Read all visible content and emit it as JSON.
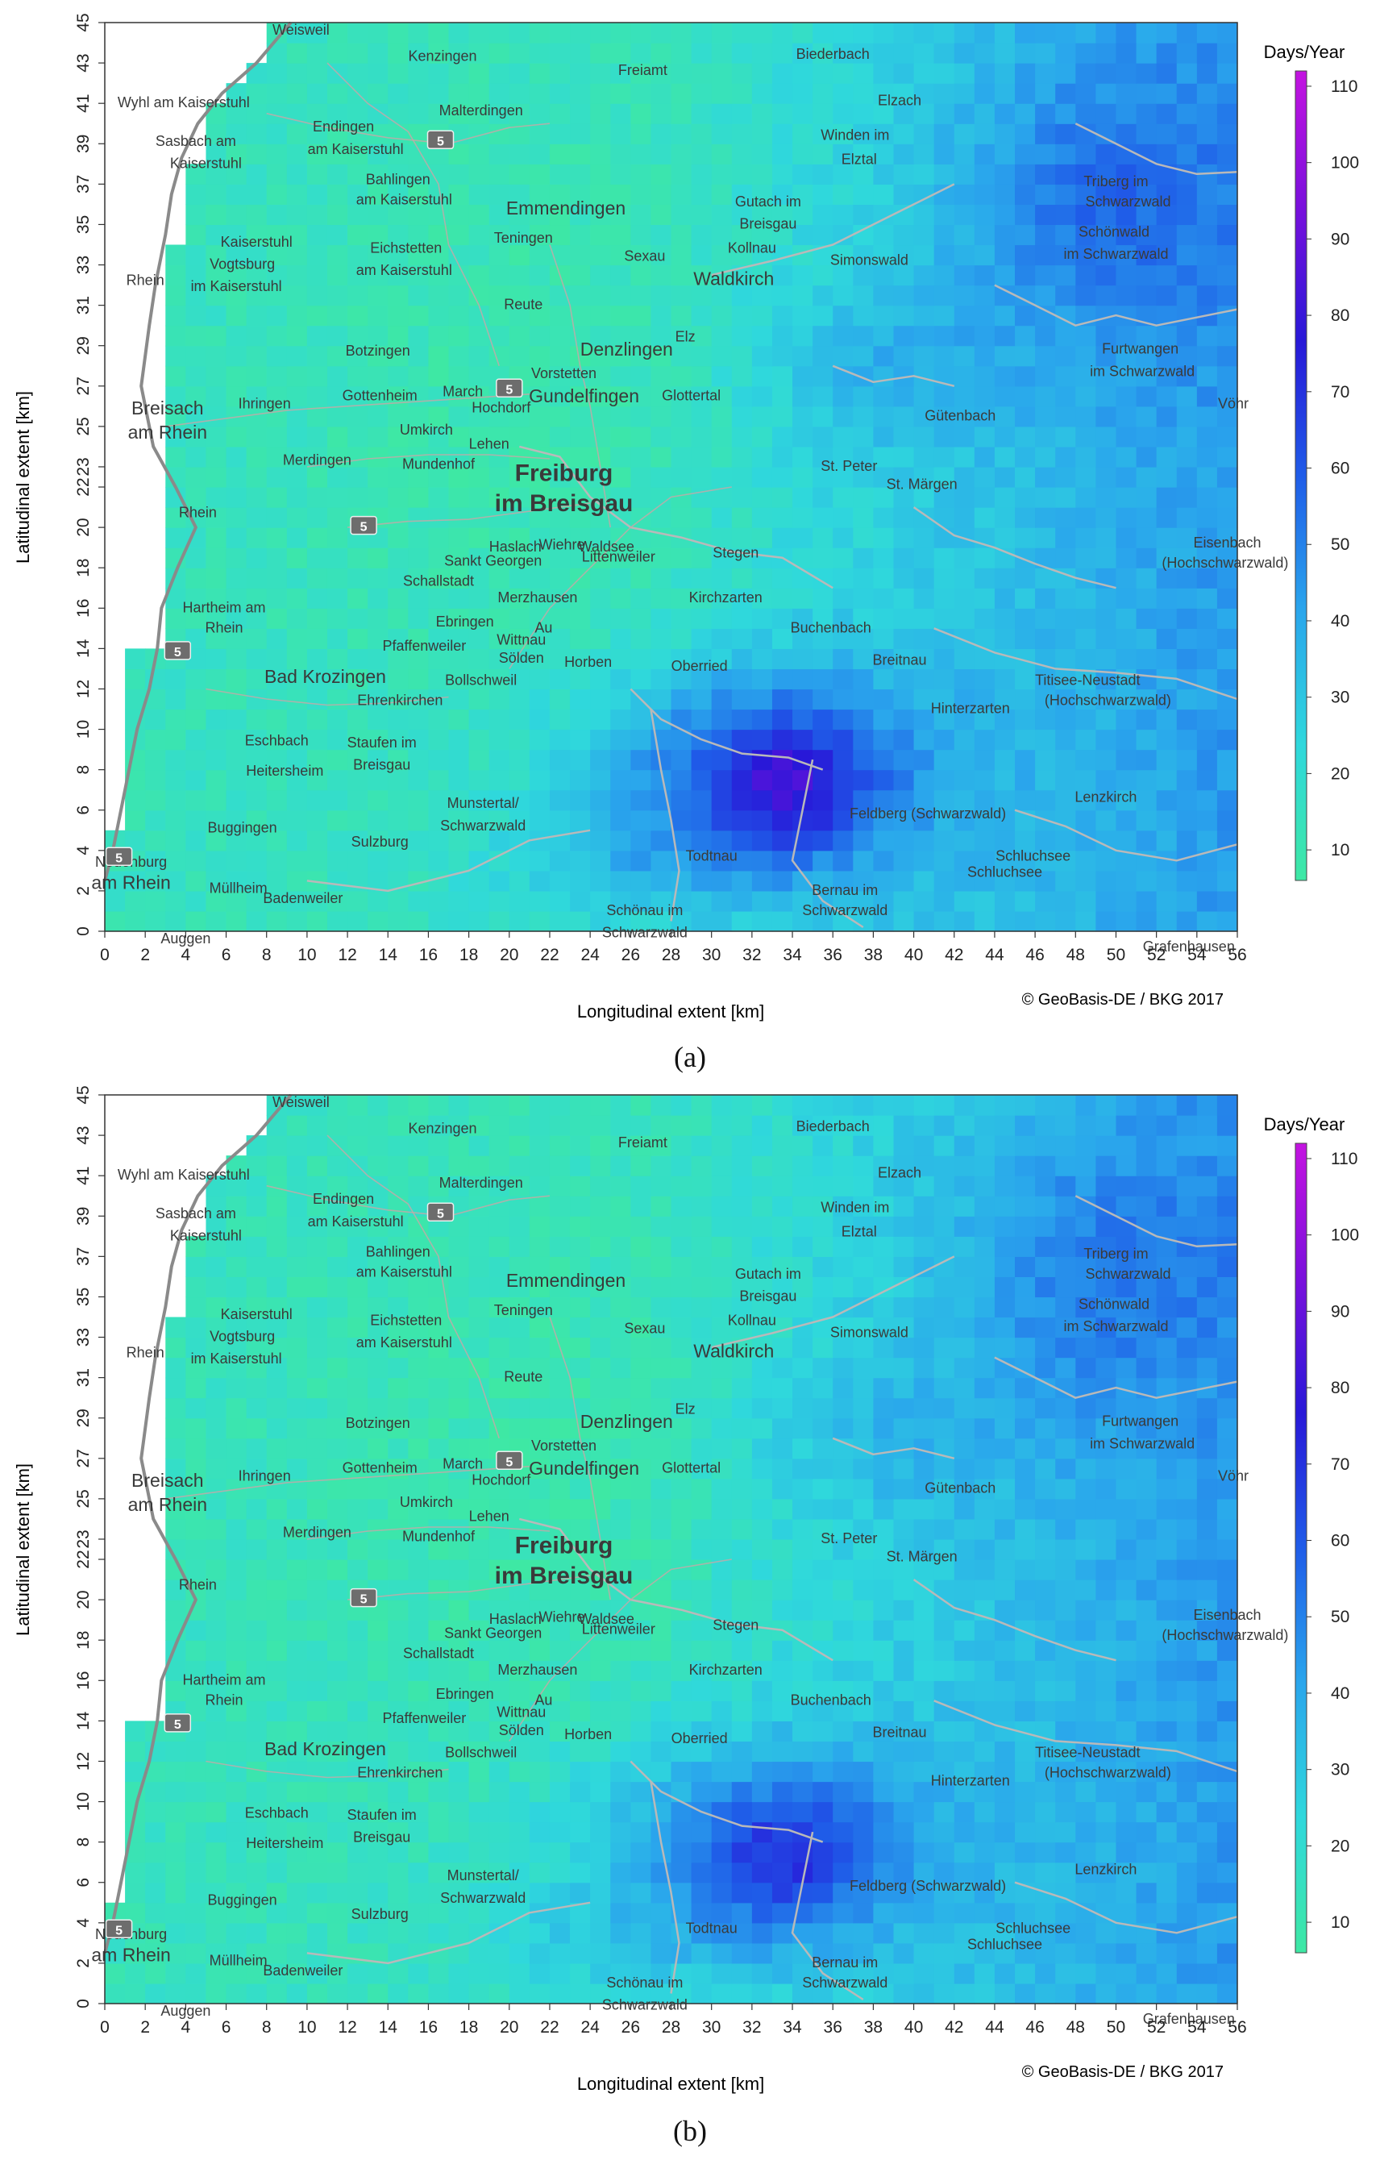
{
  "panels": [
    {
      "id": "a",
      "subcaption": "(a)",
      "xlabel": "Longitudinal extent [km]",
      "ylabel": "Latitudinal extent [km]",
      "credit": "© GeoBasis-DE / BKG 2017",
      "legend_title": "Days/Year",
      "legend_ticks": [
        10,
        20,
        30,
        40,
        50,
        60,
        70,
        80,
        90,
        100,
        110
      ],
      "x_ticks": [
        0,
        2,
        4,
        6,
        8,
        10,
        12,
        14,
        16,
        18,
        20,
        22,
        24,
        26,
        28,
        30,
        32,
        34,
        36,
        38,
        40,
        42,
        44,
        46,
        48,
        50,
        52,
        54,
        56
      ],
      "y_ticks": [
        0,
        2,
        4,
        6,
        8,
        10,
        12,
        14,
        16,
        18,
        20,
        22,
        23,
        25,
        27,
        29,
        31,
        33,
        35,
        37,
        39,
        41,
        43,
        45
      ]
    },
    {
      "id": "b",
      "subcaption": "(b)",
      "xlabel": "Longitudinal extent [km]",
      "ylabel": "Latitudinal extent [km]",
      "credit": "© GeoBasis-DE / BKG 2017",
      "legend_title": "Days/Year",
      "legend_ticks": [
        10,
        20,
        30,
        40,
        50,
        60,
        70,
        80,
        90,
        100,
        110
      ],
      "x_ticks": [
        0,
        2,
        4,
        6,
        8,
        10,
        12,
        14,
        16,
        18,
        20,
        22,
        24,
        26,
        28,
        30,
        32,
        34,
        36,
        38,
        40,
        42,
        44,
        46,
        48,
        50,
        52,
        54,
        56
      ],
      "y_ticks": [
        0,
        2,
        4,
        6,
        8,
        10,
        12,
        14,
        16,
        18,
        20,
        22,
        23,
        25,
        27,
        29,
        31,
        33,
        35,
        37,
        39,
        41,
        43,
        45
      ]
    }
  ],
  "colorscale": {
    "min": 6,
    "max": 112,
    "colors": [
      "#3ee8a4",
      "#2fd8dc",
      "#2aa6ec",
      "#1f5ce8",
      "#2818d8",
      "#7a10dc",
      "#c414e0"
    ]
  },
  "places": [
    {
      "name": "Weisweil",
      "km": [
        9.7,
        44.4
      ]
    },
    {
      "name": "Kenzingen",
      "km": [
        16.7,
        43.1
      ]
    },
    {
      "name": "Freiamt",
      "km": [
        26.6,
        42.4
      ]
    },
    {
      "name": "Biederbach",
      "km": [
        36,
        43.2
      ]
    },
    {
      "name": "Wyhl am Kaiserstuhl",
      "km": [
        3.9,
        40.8
      ]
    },
    {
      "name": "Malterdingen",
      "km": [
        18.6,
        40.4
      ]
    },
    {
      "name": "Elzach",
      "km": [
        39.3,
        40.9
      ]
    },
    {
      "name": "Sasbach am",
      "km": [
        4.5,
        38.9
      ]
    },
    {
      "name": "Kaiserstuhl",
      "km": [
        5,
        37.8
      ]
    },
    {
      "name": "Endingen",
      "km": [
        11.8,
        39.6
      ]
    },
    {
      "name": "am Kaiserstuhl",
      "km": [
        12.4,
        38.5
      ]
    },
    {
      "name": "Winden im",
      "km": [
        37.1,
        39.2
      ]
    },
    {
      "name": "Elztal",
      "km": [
        37.3,
        38
      ]
    },
    {
      "name": "Bahlingen",
      "km": [
        14.5,
        37
      ]
    },
    {
      "name": "am Kaiserstuhl",
      "km": [
        14.8,
        36
      ]
    },
    {
      "name": "Emmendingen",
      "km": [
        22.8,
        35.5
      ]
    },
    {
      "name": "Triberg im",
      "km": [
        50,
        36.9
      ]
    },
    {
      "name": "Schwarzwald",
      "km": [
        50.6,
        35.9
      ]
    },
    {
      "name": "Gutach im",
      "km": [
        32.8,
        35.9
      ]
    },
    {
      "name": "Breisgau",
      "km": [
        32.8,
        34.8
      ]
    },
    {
      "name": "Kaiserstuhl",
      "km": [
        7.5,
        33.9
      ]
    },
    {
      "name": "Teningen",
      "km": [
        20.7,
        34.1
      ]
    },
    {
      "name": "Sexau",
      "km": [
        26.7,
        33.2
      ]
    },
    {
      "name": "Kollnau",
      "km": [
        32,
        33.6
      ]
    },
    {
      "name": "Schönwald",
      "km": [
        49.9,
        34.4
      ]
    },
    {
      "name": "im Schwarzwald",
      "km": [
        50,
        33.3
      ]
    },
    {
      "name": "Vogtsburg",
      "km": [
        6.8,
        32.8
      ]
    },
    {
      "name": "im Kaiserstuhl",
      "km": [
        6.5,
        31.7
      ]
    },
    {
      "name": "Eichstetten",
      "km": [
        14.9,
        33.6
      ]
    },
    {
      "name": "am Kaiserstuhl",
      "km": [
        14.8,
        32.5
      ]
    },
    {
      "name": "Simonswald",
      "km": [
        37.8,
        33
      ]
    },
    {
      "name": "Waldkirch",
      "km": [
        31.1,
        32
      ]
    },
    {
      "name": "Reute",
      "km": [
        20.7,
        30.8
      ]
    },
    {
      "name": "Rhein",
      "km": [
        2,
        32
      ]
    },
    {
      "name": "Botzingen",
      "km": [
        13.5,
        28.5
      ]
    },
    {
      "name": "Denzlingen",
      "km": [
        25.8,
        28.5
      ]
    },
    {
      "name": "Elz",
      "km": [
        28.7,
        29.2
      ]
    },
    {
      "name": "Vorstetten",
      "km": [
        22.7,
        27.4
      ]
    },
    {
      "name": "Glottertal",
      "km": [
        29,
        26.3
      ]
    },
    {
      "name": "Furtwangen",
      "km": [
        51.2,
        28.6
      ]
    },
    {
      "name": "im Schwarzwald",
      "km": [
        51.3,
        27.5
      ]
    },
    {
      "name": "Vöhr",
      "km": [
        55.8,
        25.9
      ]
    },
    {
      "name": "Breisach",
      "km": [
        3.1,
        25.6
      ]
    },
    {
      "name": "am Rhein",
      "km": [
        3.1,
        24.4
      ]
    },
    {
      "name": "Ihringen",
      "km": [
        7.9,
        25.9
      ]
    },
    {
      "name": "Gottenheim",
      "km": [
        13.6,
        26.3
      ]
    },
    {
      "name": "March",
      "km": [
        17.7,
        26.5
      ]
    },
    {
      "name": "Hochdorf",
      "km": [
        19.6,
        25.7
      ]
    },
    {
      "name": "Gundelfingen",
      "km": [
        23.7,
        26.2
      ]
    },
    {
      "name": "Gütenbach",
      "km": [
        42.3,
        25.3
      ]
    },
    {
      "name": "Umkirch",
      "km": [
        15.9,
        24.6
      ]
    },
    {
      "name": "Lehen",
      "km": [
        19,
        23.9
      ]
    },
    {
      "name": "Freiburg",
      "km": [
        22.7,
        22.3
      ]
    },
    {
      "name": "im Breisgau",
      "km": [
        22.7,
        20.8
      ]
    },
    {
      "name": "Merdingen",
      "km": [
        10.5,
        23.1
      ]
    },
    {
      "name": "Mundenhof",
      "km": [
        16.5,
        22.9
      ]
    },
    {
      "name": "St. Peter",
      "km": [
        36.8,
        22.8
      ]
    },
    {
      "name": "St. Märgen",
      "km": [
        40.4,
        21.9
      ]
    },
    {
      "name": "Rhein",
      "km": [
        4.6,
        20.5
      ]
    },
    {
      "name": "Haslach",
      "km": [
        20.3,
        18.8
      ]
    },
    {
      "name": "Wiehre",
      "km": [
        22.6,
        18.9
      ]
    },
    {
      "name": "Waldsee",
      "km": [
        24.8,
        18.8
      ]
    },
    {
      "name": "Littenweiler",
      "km": [
        25.4,
        18.3
      ]
    },
    {
      "name": "Sankt Georgen",
      "km": [
        19.2,
        18.1
      ]
    },
    {
      "name": "Stegen",
      "km": [
        31.2,
        18.5
      ]
    },
    {
      "name": "Eisenbach",
      "km": [
        55.5,
        19
      ]
    },
    {
      "name": "(Hochschwarzwald)",
      "km": [
        55.4,
        18
      ]
    },
    {
      "name": "Schallstadt",
      "km": [
        16.5,
        17.1
      ]
    },
    {
      "name": "Merzhausen",
      "km": [
        21.4,
        16.3
      ]
    },
    {
      "name": "Kirchzarten",
      "km": [
        30.7,
        16.3
      ]
    },
    {
      "name": "Hartheim am",
      "km": [
        5.9,
        15.8
      ]
    },
    {
      "name": "Rhein",
      "km": [
        5.9,
        14.8
      ]
    },
    {
      "name": "Ebringen",
      "km": [
        17.8,
        15.1
      ]
    },
    {
      "name": "Au",
      "km": [
        21.7,
        14.8
      ]
    },
    {
      "name": "Buchenbach",
      "km": [
        35.9,
        14.8
      ]
    },
    {
      "name": "Pfaffenweiler",
      "km": [
        15.8,
        13.9
      ]
    },
    {
      "name": "Wittnau",
      "km": [
        20.6,
        14.2
      ]
    },
    {
      "name": "Sölden",
      "km": [
        20.6,
        13.3
      ]
    },
    {
      "name": "Horben",
      "km": [
        23.9,
        13.1
      ]
    },
    {
      "name": "Oberried",
      "km": [
        29.4,
        12.9
      ]
    },
    {
      "name": "Breitnau",
      "km": [
        39.3,
        13.2
      ]
    },
    {
      "name": "Bad Krozingen",
      "km": [
        10.9,
        12.3
      ]
    },
    {
      "name": "Bollschweil",
      "km": [
        18.6,
        12.2
      ]
    },
    {
      "name": "Ehrenkirchen",
      "km": [
        14.6,
        11.2
      ]
    },
    {
      "name": "Titisee-Neustadt",
      "km": [
        48.6,
        12.2
      ]
    },
    {
      "name": "(Hochschwarzwald)",
      "km": [
        49.6,
        11.2
      ]
    },
    {
      "name": "Hinterzarten",
      "km": [
        42.8,
        10.8
      ]
    },
    {
      "name": "Eschbach",
      "km": [
        8.5,
        9.2
      ]
    },
    {
      "name": "Staufen im",
      "km": [
        13.7,
        9.1
      ]
    },
    {
      "name": "Breisgau",
      "km": [
        13.7,
        8
      ]
    },
    {
      "name": "Heitersheim",
      "km": [
        8.9,
        7.7
      ]
    },
    {
      "name": "Lenzkirch",
      "km": [
        49.5,
        6.4
      ]
    },
    {
      "name": "Munstertal/",
      "km": [
        18.7,
        6.1
      ]
    },
    {
      "name": "Schwarzwald",
      "km": [
        18.7,
        5
      ]
    },
    {
      "name": "Feldberg (Schwarzwald)",
      "km": [
        40.7,
        5.6
      ]
    },
    {
      "name": "Buggingen",
      "km": [
        6.8,
        4.9
      ]
    },
    {
      "name": "Sulzburg",
      "km": [
        13.6,
        4.2
      ]
    },
    {
      "name": "Todtnau",
      "km": [
        30,
        3.5
      ]
    },
    {
      "name": "Schluchsee",
      "km": [
        45.9,
        3.5
      ]
    },
    {
      "name": "Schluchsee",
      "km": [
        44.5,
        2.7
      ]
    },
    {
      "name": "Neuenburg",
      "km": [
        1.3,
        3.2
      ]
    },
    {
      "name": "am Rhein",
      "km": [
        1.3,
        2.1
      ]
    },
    {
      "name": "Müllheim",
      "km": [
        6.6,
        1.9
      ]
    },
    {
      "name": "Bernau im",
      "km": [
        36.6,
        1.8
      ]
    },
    {
      "name": "Schwarzwald",
      "km": [
        36.6,
        0.8
      ]
    },
    {
      "name": "Badenweiler",
      "km": [
        9.8,
        1.4
      ]
    },
    {
      "name": "Schönau im",
      "km": [
        26.7,
        0.8
      ]
    },
    {
      "name": "Schwarzwald",
      "km": [
        26.7,
        -0.3
      ]
    },
    {
      "name": "Auggen",
      "km": [
        4,
        -0.6
      ]
    },
    {
      "name": "Grafenhausen",
      "km": [
        53.6,
        -1
      ]
    }
  ],
  "road_shields": [
    {
      "label": "5",
      "km": [
        16.6,
        39.2
      ]
    },
    {
      "label": "5",
      "km": [
        20,
        26.9
      ]
    },
    {
      "label": "5",
      "km": [
        12.8,
        20.1
      ]
    },
    {
      "label": "5",
      "km": [
        3.6,
        13.9
      ]
    },
    {
      "label": "5",
      "km": [
        0.7,
        3.7
      ]
    }
  ]
}
